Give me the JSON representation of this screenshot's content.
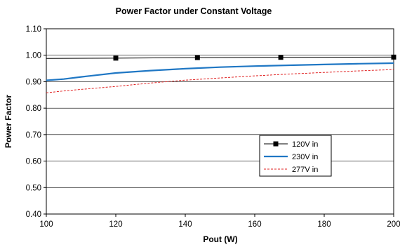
{
  "chart_data": {
    "type": "line",
    "title": "Power  Factor under Constant  Voltage",
    "xlabel": "Pout (W)",
    "ylabel": "Power Factor",
    "xlim": [
      100,
      200
    ],
    "ylim": [
      0.4,
      1.1
    ],
    "xticks": [
      "100",
      "120",
      "140",
      "160",
      "180",
      "200"
    ],
    "yticks": [
      "0.40",
      "0.50",
      "0.60",
      "0.70",
      "0.80",
      "0.90",
      "1.00",
      "1.10"
    ],
    "grid": "horizontal",
    "legend_position": "center-right",
    "series": [
      {
        "name": "120V in",
        "color": "#000000",
        "style": "solid-square-markers",
        "x": [
          100,
          120,
          143.5,
          167.5,
          200
        ],
        "y": [
          0.988,
          0.989,
          0.991,
          0.992,
          0.993
        ],
        "markers_x": [
          120,
          143.5,
          167.5,
          200
        ]
      },
      {
        "name": "230V in",
        "color": "#1f77c4",
        "style": "solid-thick",
        "x": [
          100,
          105,
          110,
          120,
          130,
          140,
          150,
          160,
          170,
          180,
          190,
          200
        ],
        "y": [
          0.905,
          0.91,
          0.918,
          0.933,
          0.942,
          0.949,
          0.955,
          0.959,
          0.962,
          0.965,
          0.968,
          0.97
        ]
      },
      {
        "name": "277V in",
        "color": "#e02020",
        "style": "dashed",
        "x": [
          100,
          105,
          110,
          120,
          130,
          140,
          150,
          160,
          170,
          180,
          190,
          200
        ],
        "y": [
          0.858,
          0.865,
          0.871,
          0.882,
          0.895,
          0.906,
          0.914,
          0.922,
          0.929,
          0.935,
          0.941,
          0.946
        ]
      }
    ]
  }
}
